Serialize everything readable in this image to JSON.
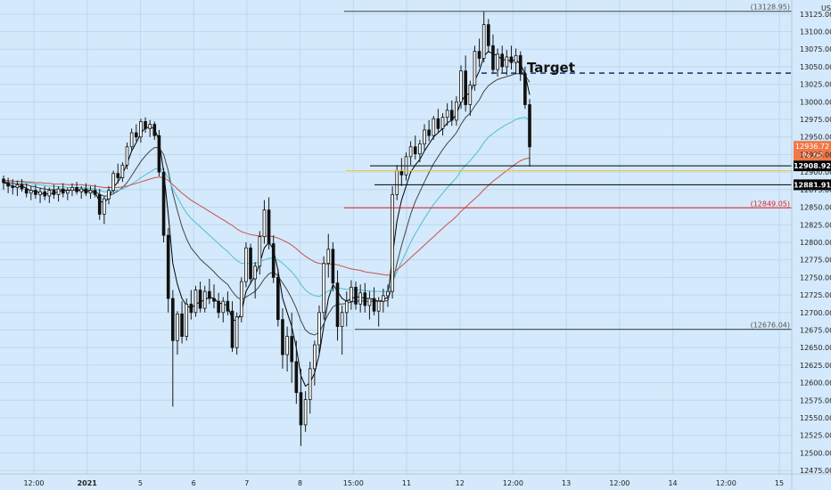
{
  "chart_data": {
    "type": "candlestick",
    "currency": "USD",
    "ylim": [
      12465,
      13140
    ],
    "y_ticks": [
      12475,
      12500,
      12525,
      12550,
      12575,
      12600,
      12625,
      12650,
      12675,
      12700,
      12725,
      12750,
      12775,
      12800,
      12825,
      12850,
      12875,
      12900,
      12925,
      12950,
      12975,
      13000,
      13025,
      13050,
      13075,
      13100,
      13125
    ],
    "x_ticks": [
      "12:00",
      "2021",
      "5",
      "6",
      "7",
      "8",
      "15:00",
      "11",
      "12",
      "12:00",
      "13",
      "12:00",
      "14",
      "12:00",
      "15"
    ],
    "levels": [
      {
        "value": 13128.95,
        "label": "(13128.95)",
        "color": "#444444",
        "style": "solid"
      },
      {
        "value": 13041,
        "label": "",
        "color": "#0d1a5a",
        "style": "dashed"
      },
      {
        "value": 12908.92,
        "label": "12908.92",
        "color": "#000000",
        "style": "solid"
      },
      {
        "value": 12902,
        "label": "",
        "color": "#f2c230",
        "style": "solid"
      },
      {
        "value": 12881.91,
        "label": "12881.91",
        "color": "#000000",
        "style": "solid"
      },
      {
        "value": 12849.05,
        "label": "(12849.05)",
        "color": "#e31f1f",
        "style": "solid"
      },
      {
        "value": 12676.04,
        "label": "(12676.04)",
        "color": "#444444",
        "style": "solid"
      }
    ],
    "last_price": {
      "value": "12936.72",
      "countdown": "06:08",
      "color": "#f07848"
    },
    "annotations": [
      {
        "text": "Target"
      }
    ],
    "candles": [
      [
        12890,
        12895,
        12875,
        12885
      ],
      [
        12885,
        12892,
        12870,
        12880
      ],
      [
        12880,
        12890,
        12868,
        12878
      ],
      [
        12878,
        12888,
        12866,
        12882
      ],
      [
        12882,
        12890,
        12872,
        12876
      ],
      [
        12876,
        12884,
        12864,
        12870
      ],
      [
        12870,
        12880,
        12860,
        12874
      ],
      [
        12874,
        12882,
        12862,
        12868
      ],
      [
        12868,
        12878,
        12856,
        12872
      ],
      [
        12872,
        12880,
        12860,
        12866
      ],
      [
        12866,
        12878,
        12856,
        12874
      ],
      [
        12874,
        12882,
        12862,
        12868
      ],
      [
        12868,
        12880,
        12858,
        12876
      ],
      [
        12876,
        12884,
        12864,
        12870
      ],
      [
        12870,
        12878,
        12860,
        12874
      ],
      [
        12874,
        12884,
        12866,
        12878
      ],
      [
        12878,
        12886,
        12868,
        12872
      ],
      [
        12872,
        12880,
        12862,
        12876
      ],
      [
        12876,
        12884,
        12866,
        12870
      ],
      [
        12870,
        12880,
        12862,
        12874
      ],
      [
        12874,
        12882,
        12864,
        12868
      ],
      [
        12868,
        12876,
        12832,
        12840
      ],
      [
        12840,
        12866,
        12826,
        12862
      ],
      [
        12862,
        12880,
        12854,
        12874
      ],
      [
        12874,
        12902,
        12870,
        12898
      ],
      [
        12898,
        12912,
        12884,
        12892
      ],
      [
        12892,
        12914,
        12886,
        12910
      ],
      [
        12910,
        12942,
        12904,
        12936
      ],
      [
        12936,
        12962,
        12930,
        12956
      ],
      [
        12956,
        12968,
        12944,
        12950
      ],
      [
        12950,
        12976,
        12942,
        12972
      ],
      [
        12972,
        12978,
        12956,
        12962
      ],
      [
        12962,
        12974,
        12950,
        12968
      ],
      [
        12968,
        12972,
        12946,
        12952
      ],
      [
        12952,
        12960,
        12894,
        12900
      ],
      [
        12900,
        12906,
        12800,
        12810
      ],
      [
        12810,
        12820,
        12700,
        12720
      ],
      [
        12720,
        12732,
        12566,
        12660
      ],
      [
        12660,
        12702,
        12640,
        12698
      ],
      [
        12698,
        12716,
        12656,
        12666
      ],
      [
        12666,
        12720,
        12660,
        12712
      ],
      [
        12712,
        12732,
        12690,
        12700
      ],
      [
        12700,
        12738,
        12694,
        12732
      ],
      [
        12732,
        12744,
        12700,
        12706
      ],
      [
        12706,
        12738,
        12700,
        12730
      ],
      [
        12730,
        12748,
        12712,
        12720
      ],
      [
        12720,
        12740,
        12706,
        12716
      ],
      [
        12716,
        12728,
        12692,
        12700
      ],
      [
        12700,
        12722,
        12686,
        12716
      ],
      [
        12716,
        12730,
        12696,
        12702
      ],
      [
        12702,
        12716,
        12644,
        12650
      ],
      [
        12650,
        12700,
        12640,
        12694
      ],
      [
        12694,
        12750,
        12686,
        12744
      ],
      [
        12744,
        12800,
        12736,
        12792
      ],
      [
        12792,
        12798,
        12740,
        12748
      ],
      [
        12748,
        12772,
        12720,
        12766
      ],
      [
        12766,
        12816,
        12754,
        12808
      ],
      [
        12808,
        12860,
        12798,
        12846
      ],
      [
        12846,
        12864,
        12790,
        12798
      ],
      [
        12798,
        12810,
        12742,
        12750
      ],
      [
        12750,
        12762,
        12680,
        12690
      ],
      [
        12690,
        12706,
        12620,
        12640
      ],
      [
        12640,
        12680,
        12616,
        12666
      ],
      [
        12666,
        12700,
        12600,
        12630
      ],
      [
        12630,
        12660,
        12570,
        12586
      ],
      [
        12586,
        12620,
        12510,
        12540
      ],
      [
        12540,
        12588,
        12530,
        12576
      ],
      [
        12576,
        12630,
        12556,
        12620
      ],
      [
        12620,
        12660,
        12596,
        12654
      ],
      [
        12654,
        12710,
        12640,
        12700
      ],
      [
        12700,
        12780,
        12690,
        12770
      ],
      [
        12770,
        12812,
        12750,
        12790
      ],
      [
        12790,
        12800,
        12730,
        12742
      ],
      [
        12742,
        12760,
        12660,
        12680
      ],
      [
        12680,
        12710,
        12640,
        12700
      ],
      [
        12700,
        12730,
        12680,
        12716
      ],
      [
        12716,
        12746,
        12704,
        12736
      ],
      [
        12736,
        12744,
        12704,
        12712
      ],
      [
        12712,
        12740,
        12700,
        12728
      ],
      [
        12728,
        12742,
        12700,
        12710
      ],
      [
        12710,
        12730,
        12690,
        12720
      ],
      [
        12720,
        12736,
        12696,
        12702
      ],
      [
        12702,
        12722,
        12680,
        12716
      ],
      [
        12716,
        12734,
        12700,
        12724
      ],
      [
        12724,
        12740,
        12708,
        12730
      ],
      [
        12730,
        12880,
        12720,
        12868
      ],
      [
        12868,
        12910,
        12860,
        12902
      ],
      [
        12902,
        12920,
        12880,
        12896
      ],
      [
        12896,
        12928,
        12888,
        12922
      ],
      [
        12922,
        12944,
        12910,
        12936
      ],
      [
        12936,
        12952,
        12918,
        12926
      ],
      [
        12926,
        12946,
        12914,
        12940
      ],
      [
        12940,
        12968,
        12930,
        12960
      ],
      [
        12960,
        12974,
        12944,
        12952
      ],
      [
        12952,
        12980,
        12946,
        12976
      ],
      [
        12976,
        12990,
        12956,
        12962
      ],
      [
        12962,
        12984,
        12952,
        12978
      ],
      [
        12978,
        12998,
        12966,
        12988
      ],
      [
        12988,
        13002,
        12966,
        12974
      ],
      [
        12974,
        13008,
        12966,
        13000
      ],
      [
        13000,
        13052,
        12990,
        13044
      ],
      [
        13044,
        13066,
        12986,
        12996
      ],
      [
        12996,
        13030,
        12980,
        13024
      ],
      [
        13024,
        13080,
        13016,
        13072
      ],
      [
        13072,
        13090,
        13050,
        13062
      ],
      [
        13062,
        13129,
        13056,
        13110
      ],
      [
        13110,
        13118,
        13070,
        13080
      ],
      [
        13080,
        13096,
        13040,
        13046
      ],
      [
        13046,
        13076,
        13036,
        13068
      ],
      [
        13068,
        13080,
        13042,
        13050
      ],
      [
        13050,
        13074,
        13038,
        13064
      ],
      [
        13064,
        13080,
        13046,
        13056
      ],
      [
        13056,
        13076,
        13040,
        13066
      ],
      [
        13066,
        13072,
        13030,
        13040
      ],
      [
        13040,
        13050,
        12990,
        12996
      ],
      [
        12996,
        13004,
        12908,
        12936
      ]
    ],
    "moving_averages": [
      {
        "color": "#000000",
        "values": [
          12885,
          12883,
          12880,
          12879,
          12880,
          12877,
          12873,
          12873,
          12870,
          12869,
          12869,
          12870,
          12872,
          12874,
          12873,
          12875,
          12874,
          12874,
          12873,
          12872,
          12871,
          12858,
          12857,
          12863,
          12878,
          12886,
          12897,
          12912,
          12930,
          12942,
          12955,
          12963,
          12964,
          12962,
          12945,
          12900,
          12840,
          12770,
          12740,
          12720,
          12710,
          12706,
          12712,
          12715,
          12718,
          12722,
          12720,
          12714,
          12712,
          12710,
          12690,
          12688,
          12700,
          12730,
          12742,
          12752,
          12770,
          12792,
          12800,
          12790,
          12760,
          12720,
          12700,
          12680,
          12650,
          12610,
          12595,
          12600,
          12614,
          12640,
          12680,
          12720,
          12740,
          12730,
          12720,
          12716,
          12720,
          12722,
          12722,
          12720,
          12720,
          12718,
          12716,
          12718,
          12722,
          12780,
          12830,
          12860,
          12880,
          12900,
          12910,
          12918,
          12930,
          12940,
          12950,
          12956,
          12962,
          12970,
          12974,
          12982,
          13000,
          13010,
          13012,
          13030,
          13044,
          13065,
          13072,
          13068,
          13066,
          13060,
          13060,
          13058,
          13060,
          13054,
          13040,
          13010
        ]
      },
      {
        "color": "#454545",
        "values": [
          12886,
          12885,
          12884,
          12883,
          12883,
          12882,
          12880,
          12879,
          12877,
          12876,
          12875,
          12875,
          12875,
          12875,
          12874,
          12875,
          12875,
          12875,
          12875,
          12874,
          12873,
          12868,
          12866,
          12866,
          12869,
          12873,
          12878,
          12885,
          12895,
          12905,
          12915,
          12923,
          12930,
          12935,
          12935,
          12925,
          12902,
          12870,
          12845,
          12822,
          12805,
          12792,
          12784,
          12776,
          12770,
          12764,
          12758,
          12751,
          12745,
          12740,
          12730,
          12722,
          12718,
          12722,
          12726,
          12730,
          12738,
          12748,
          12755,
          12758,
          12752,
          12742,
          12732,
          12720,
          12706,
          12688,
          12675,
          12670,
          12668,
          12672,
          12684,
          12698,
          12708,
          12712,
          12712,
          12713,
          12715,
          12716,
          12717,
          12716,
          12716,
          12716,
          12716,
          12716,
          12717,
          12740,
          12770,
          12795,
          12818,
          12840,
          12858,
          12872,
          12886,
          12899,
          12912,
          12922,
          12932,
          12941,
          12948,
          12956,
          12968,
          12978,
          12984,
          12994,
          13003,
          13015,
          13023,
          13028,
          13032,
          13034,
          13036,
          13038,
          13040,
          13040,
          13038,
          13028
        ]
      },
      {
        "color": "#4fc1cc",
        "values": [
          12888,
          12887,
          12887,
          12886,
          12886,
          12885,
          12884,
          12883,
          12882,
          12881,
          12880,
          12880,
          12879,
          12879,
          12878,
          12878,
          12878,
          12878,
          12877,
          12877,
          12876,
          12874,
          12872,
          12872,
          12873,
          12874,
          12876,
          12879,
          12883,
          12887,
          12892,
          12896,
          12900,
          12904,
          12906,
          12902,
          12892,
          12876,
          12864,
          12852,
          12842,
          12834,
          12828,
          12822,
          12816,
          12810,
          12804,
          12798,
          12792,
          12787,
          12780,
          12774,
          12770,
          12770,
          12770,
          12770,
          12772,
          12775,
          12777,
          12778,
          12775,
          12770,
          12764,
          12758,
          12750,
          12740,
          12732,
          12727,
          12724,
          12723,
          12726,
          12731,
          12734,
          12735,
          12734,
          12733,
          12733,
          12732,
          12732,
          12731,
          12731,
          12730,
          12730,
          12730,
          12730,
          12742,
          12758,
          12772,
          12786,
          12800,
          12812,
          12823,
          12834,
          12844,
          12854,
          12862,
          12870,
          12878,
          12885,
          12892,
          12902,
          12910,
          12916,
          12924,
          12932,
          12942,
          12950,
          12955,
          12960,
          12964,
          12968,
          12971,
          12975,
          12977,
          12978,
          12974
        ]
      },
      {
        "color": "#c8534a",
        "values": [
          12888,
          12888,
          12887,
          12887,
          12887,
          12886,
          12886,
          12885,
          12885,
          12884,
          12884,
          12883,
          12883,
          12883,
          12882,
          12882,
          12882,
          12882,
          12881,
          12881,
          12880,
          12879,
          12878,
          12878,
          12878,
          12878,
          12879,
          12880,
          12882,
          12884,
          12886,
          12888,
          12890,
          12892,
          12893,
          12892,
          12888,
          12882,
          12876,
          12870,
          12865,
          12860,
          12856,
          12852,
          12848,
          12844,
          12840,
          12836,
          12832,
          12828,
          12824,
          12819,
          12815,
          12813,
          12811,
          12810,
          12809,
          12809,
          12809,
          12808,
          12806,
          12803,
          12800,
          12796,
          12791,
          12785,
          12780,
          12776,
          12772,
          12770,
          12769,
          12769,
          12769,
          12768,
          12766,
          12764,
          12762,
          12761,
          12760,
          12758,
          12757,
          12756,
          12755,
          12754,
          12753,
          12756,
          12761,
          12766,
          12772,
          12778,
          12784,
          12790,
          12796,
          12802,
          12808,
          12814,
          12820,
          12826,
          12831,
          12837,
          12844,
          12850,
          12856,
          12862,
          12868,
          12875,
          12881,
          12887,
          12892,
          12897,
          12902,
          12907,
          12912,
          12916,
          12919,
          12920
        ]
      }
    ]
  }
}
